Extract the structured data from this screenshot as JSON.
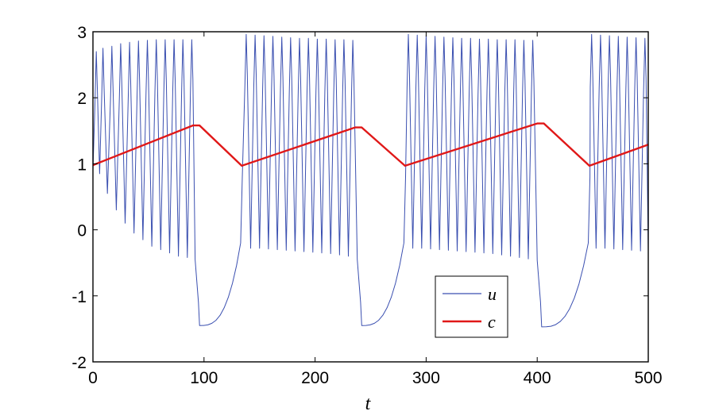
{
  "chart_data": {
    "type": "line",
    "title": "",
    "xlabel": "t",
    "ylabel": "",
    "xlim": [
      0,
      500
    ],
    "ylim": [
      -2,
      3
    ],
    "xticks": [
      0,
      100,
      200,
      300,
      400,
      500
    ],
    "xtick_labels": [
      "0",
      "100",
      "200",
      "300",
      "400",
      "500"
    ],
    "yticks": [
      -2,
      -1,
      0,
      1,
      2,
      3
    ],
    "ytick_labels": [
      "-2",
      "-1",
      "0",
      "1",
      "2",
      "3"
    ],
    "grid": false,
    "legend_position": "bottom-right",
    "series": [
      {
        "name": "u",
        "color": "#3a4fb0",
        "bursts": [
          {
            "peaks_t": [
              3,
              9,
              17,
              25,
              33,
              41,
              49,
              57,
              65,
              73,
              81,
              89
            ],
            "peak_u": [
              2.7,
              2.75,
              2.78,
              2.82,
              2.84,
              2.86,
              2.87,
              2.88,
              2.88,
              2.88,
              2.88,
              2.88
            ],
            "trough_u": [
              0.85,
              0.55,
              0.3,
              0.1,
              -0.05,
              -0.15,
              -0.25,
              -0.3,
              -0.35,
              -0.4,
              -0.42,
              -0.45
            ]
          },
          {
            "peaks_t": [
              138,
              146,
              154,
              162,
              170,
              178,
              186,
              194,
              202,
              210,
              218,
              226,
              234
            ],
            "peak_u": [
              2.96,
              2.95,
              2.94,
              2.93,
              2.92,
              2.91,
              2.9,
              2.9,
              2.89,
              2.89,
              2.88,
              2.88,
              2.87
            ],
            "trough_u": [
              -0.28,
              -0.28,
              -0.29,
              -0.3,
              -0.31,
              -0.32,
              -0.33,
              -0.34,
              -0.35,
              -0.36,
              -0.38,
              -0.4,
              -0.45
            ]
          },
          {
            "peaks_t": [
              284,
              292,
              300,
              308,
              316,
              324,
              332,
              340,
              348,
              356,
              364,
              372,
              380,
              388,
              396
            ],
            "peak_u": [
              2.96,
              2.95,
              2.94,
              2.93,
              2.92,
              2.91,
              2.9,
              2.9,
              2.89,
              2.89,
              2.88,
              2.88,
              2.88,
              2.87,
              2.87
            ],
            "trough_u": [
              -0.28,
              -0.28,
              -0.29,
              -0.3,
              -0.31,
              -0.32,
              -0.33,
              -0.34,
              -0.35,
              -0.36,
              -0.38,
              -0.4,
              -0.42,
              -0.44,
              -0.46
            ]
          },
          {
            "peaks_t": [
              449,
              457,
              465,
              473,
              481,
              489,
              497
            ],
            "peak_u": [
              2.96,
              2.95,
              2.94,
              2.93,
              2.92,
              2.91,
              2.9
            ],
            "trough_u": [
              -0.28,
              -0.28,
              -0.29,
              -0.3,
              -0.31,
              -0.32,
              -0.33
            ]
          }
        ],
        "silent_phases": [
          {
            "t_start": 92,
            "t_min": 96,
            "u_min": -1.45,
            "t_end": 133,
            "u_end": -0.2
          },
          {
            "t_start": 238,
            "t_min": 242,
            "u_min": -1.45,
            "t_end": 280,
            "u_end": -0.2
          },
          {
            "t_start": 400,
            "t_min": 404,
            "u_min": -1.47,
            "t_end": 446,
            "u_end": -0.2
          }
        ]
      },
      {
        "name": "c",
        "color": "#e01818",
        "x": [
          0,
          90,
          96,
          134,
          236,
          242,
          281,
          400,
          406,
          447,
          500
        ],
        "y": [
          0.98,
          1.58,
          1.58,
          0.97,
          1.55,
          1.55,
          0.97,
          1.61,
          1.61,
          0.97,
          1.29
        ]
      }
    ]
  }
}
